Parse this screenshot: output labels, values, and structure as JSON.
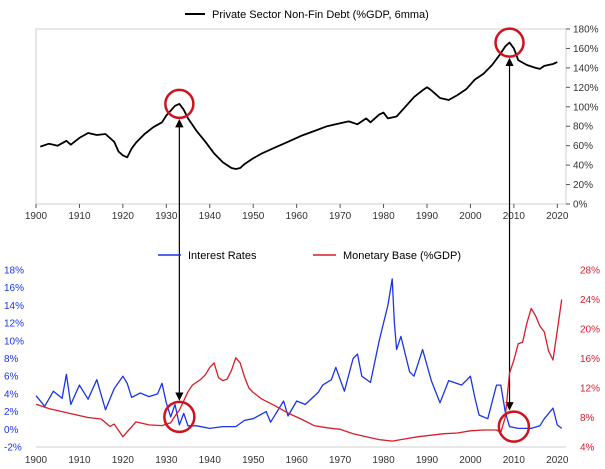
{
  "chart_data": [
    {
      "type": "line",
      "title": "",
      "xlabel": "",
      "ylabel": "",
      "xlim": [
        1900,
        2022
      ],
      "ylim": [
        0,
        180
      ],
      "grid": false,
      "legend": "top-center",
      "y_axis_side": "right",
      "x_ticks": [
        "1900",
        "1910",
        "1920",
        "1930",
        "1940",
        "1950",
        "1960",
        "1970",
        "1980",
        "1990",
        "2000",
        "2010",
        "2020"
      ],
      "y_ticks": [
        "0%",
        "20%",
        "40%",
        "60%",
        "80%",
        "100%",
        "120%",
        "140%",
        "160%",
        "180%"
      ],
      "highlight_circles": [
        {
          "x": 1933,
          "y": 103
        },
        {
          "x": 2009,
          "y": 166
        }
      ],
      "series": [
        {
          "name": "Private Sector Non-Fin Debt (%GDP, 6mma)",
          "color": "#000000",
          "points": [
            [
              1901,
              59
            ],
            [
              1903,
              62
            ],
            [
              1905,
              60
            ],
            [
              1907,
              65
            ],
            [
              1908,
              61
            ],
            [
              1910,
              68
            ],
            [
              1912,
              73
            ],
            [
              1914,
              71
            ],
            [
              1916,
              72
            ],
            [
              1918,
              64
            ],
            [
              1919,
              54
            ],
            [
              1920,
              50
            ],
            [
              1921,
              48
            ],
            [
              1922,
              57
            ],
            [
              1923,
              63
            ],
            [
              1925,
              72
            ],
            [
              1927,
              79
            ],
            [
              1929,
              84
            ],
            [
              1930,
              91
            ],
            [
              1931,
              96
            ],
            [
              1932,
              101
            ],
            [
              1933,
              103
            ],
            [
              1934,
              97
            ],
            [
              1935,
              88
            ],
            [
              1937,
              75
            ],
            [
              1939,
              64
            ],
            [
              1941,
              52
            ],
            [
              1943,
              43
            ],
            [
              1945,
              37
            ],
            [
              1946,
              36
            ],
            [
              1947,
              37
            ],
            [
              1948,
              41
            ],
            [
              1950,
              47
            ],
            [
              1952,
              52
            ],
            [
              1955,
              58
            ],
            [
              1958,
              64
            ],
            [
              1961,
              70
            ],
            [
              1964,
              75
            ],
            [
              1967,
              80
            ],
            [
              1970,
              83
            ],
            [
              1972,
              85
            ],
            [
              1974,
              82
            ],
            [
              1976,
              88
            ],
            [
              1977,
              84
            ],
            [
              1979,
              92
            ],
            [
              1980,
              94
            ],
            [
              1981,
              88
            ],
            [
              1983,
              90
            ],
            [
              1985,
              100
            ],
            [
              1987,
              110
            ],
            [
              1989,
              117
            ],
            [
              1990,
              120
            ],
            [
              1991,
              117
            ],
            [
              1993,
              109
            ],
            [
              1995,
              107
            ],
            [
              1997,
              112
            ],
            [
              1999,
              118
            ],
            [
              2001,
              128
            ],
            [
              2003,
              134
            ],
            [
              2005,
              143
            ],
            [
              2007,
              155
            ],
            [
              2008,
              162
            ],
            [
              2009,
              166
            ],
            [
              2010,
              160
            ],
            [
              2011,
              148
            ],
            [
              2013,
              143
            ],
            [
              2015,
              140
            ],
            [
              2016,
              139
            ],
            [
              2017,
              142
            ],
            [
              2019,
              144
            ],
            [
              2020,
              146
            ]
          ]
        }
      ]
    },
    {
      "type": "line",
      "title": "",
      "xlabel": "",
      "ylabel": "",
      "xlim": [
        1900,
        2022
      ],
      "ylim_left": [
        -2,
        18
      ],
      "ylim_right": [
        4,
        28
      ],
      "grid": false,
      "legend": "top-center",
      "x_ticks": [
        "1900",
        "1910",
        "1920",
        "1930",
        "1940",
        "1950",
        "1960",
        "1970",
        "1980",
        "1990",
        "2000",
        "2010",
        "2020"
      ],
      "y_ticks_left": [
        "-2%",
        "0%",
        "2%",
        "4%",
        "6%",
        "8%",
        "10%",
        "12%",
        "14%",
        "16%",
        "18%"
      ],
      "y_ticks_right": [
        "4%",
        "8%",
        "12%",
        "16%",
        "20%",
        "24%",
        "28%"
      ],
      "highlight_circles": [
        {
          "x": 1933,
          "y": 1.4,
          "axis": "left"
        },
        {
          "x": 2010,
          "y": 0.3,
          "axis": "left"
        }
      ],
      "series": [
        {
          "name": "Interest Rates",
          "axis": "left",
          "color": "#1a35e8",
          "points": [
            [
              1900,
              3.8
            ],
            [
              1902,
              2.6
            ],
            [
              1904,
              4.3
            ],
            [
              1906,
              3.5
            ],
            [
              1907,
              6.2
            ],
            [
              1908,
              2.8
            ],
            [
              1910,
              5.0
            ],
            [
              1912,
              3.4
            ],
            [
              1914,
              5.6
            ],
            [
              1916,
              2.2
            ],
            [
              1918,
              4.6
            ],
            [
              1920,
              6.0
            ],
            [
              1921,
              5.2
            ],
            [
              1922,
              3.6
            ],
            [
              1924,
              4.1
            ],
            [
              1926,
              3.7
            ],
            [
              1928,
              4.0
            ],
            [
              1929,
              5.2
            ],
            [
              1930,
              3.0
            ],
            [
              1931,
              1.4
            ],
            [
              1932,
              2.8
            ],
            [
              1933,
              0.5
            ],
            [
              1934,
              1.8
            ],
            [
              1935,
              0.4
            ],
            [
              1937,
              0.4
            ],
            [
              1940,
              0.1
            ],
            [
              1943,
              0.3
            ],
            [
              1946,
              0.3
            ],
            [
              1948,
              1.0
            ],
            [
              1950,
              1.2
            ],
            [
              1953,
              2.0
            ],
            [
              1954,
              0.8
            ],
            [
              1957,
              3.2
            ],
            [
              1958,
              1.5
            ],
            [
              1960,
              3.2
            ],
            [
              1962,
              2.8
            ],
            [
              1965,
              4.2
            ],
            [
              1966,
              5.0
            ],
            [
              1968,
              5.6
            ],
            [
              1969,
              7.0
            ],
            [
              1971,
              4.3
            ],
            [
              1973,
              8.0
            ],
            [
              1974,
              8.5
            ],
            [
              1975,
              6.0
            ],
            [
              1977,
              5.3
            ],
            [
              1979,
              10.0
            ],
            [
              1980,
              12.0
            ],
            [
              1981,
              14.0
            ],
            [
              1982,
              17.0
            ],
            [
              1982.5,
              12.0
            ],
            [
              1983,
              9.0
            ],
            [
              1984,
              10.5
            ],
            [
              1986,
              6.5
            ],
            [
              1987,
              6.0
            ],
            [
              1989,
              9.0
            ],
            [
              1991,
              5.5
            ],
            [
              1993,
              3.0
            ],
            [
              1995,
              5.5
            ],
            [
              1998,
              5.0
            ],
            [
              2000,
              6.0
            ],
            [
              2001,
              3.6
            ],
            [
              2002,
              1.6
            ],
            [
              2004,
              1.2
            ],
            [
              2006,
              5.0
            ],
            [
              2007,
              5.0
            ],
            [
              2008,
              2.0
            ],
            [
              2009,
              0.3
            ],
            [
              2011,
              0.1
            ],
            [
              2014,
              0.1
            ],
            [
              2016,
              0.4
            ],
            [
              2017,
              1.2
            ],
            [
              2019,
              2.4
            ],
            [
              2020,
              0.5
            ],
            [
              2021,
              0.1
            ]
          ]
        },
        {
          "name": "Monetary Base (%GDP)",
          "axis": "right",
          "color": "#d71d2a",
          "points": [
            [
              1900,
              9.8
            ],
            [
              1903,
              9.2
            ],
            [
              1906,
              8.8
            ],
            [
              1909,
              8.4
            ],
            [
              1912,
              8.0
            ],
            [
              1915,
              7.8
            ],
            [
              1917,
              6.8
            ],
            [
              1918,
              7.1
            ],
            [
              1920,
              5.4
            ],
            [
              1923,
              7.4
            ],
            [
              1926,
              7.0
            ],
            [
              1929,
              6.9
            ],
            [
              1931,
              7.3
            ],
            [
              1932,
              8.2
            ],
            [
              1933,
              9.0
            ],
            [
              1935,
              11.5
            ],
            [
              1936,
              12.4
            ],
            [
              1937,
              12.8
            ],
            [
              1938,
              13.2
            ],
            [
              1939,
              13.8
            ],
            [
              1940,
              14.8
            ],
            [
              1941,
              15.4
            ],
            [
              1942,
              13.4
            ],
            [
              1943,
              13.0
            ],
            [
              1944,
              13.2
            ],
            [
              1945,
              14.4
            ],
            [
              1946,
              16.1
            ],
            [
              1947,
              15.4
            ],
            [
              1948,
              13.5
            ],
            [
              1949,
              12.0
            ],
            [
              1950,
              11.4
            ],
            [
              1952,
              10.5
            ],
            [
              1955,
              9.6
            ],
            [
              1958,
              8.6
            ],
            [
              1961,
              7.8
            ],
            [
              1964,
              6.9
            ],
            [
              1967,
              6.6
            ],
            [
              1970,
              6.4
            ],
            [
              1973,
              5.8
            ],
            [
              1976,
              5.4
            ],
            [
              1979,
              5.0
            ],
            [
              1982,
              4.8
            ],
            [
              1985,
              5.1
            ],
            [
              1988,
              5.4
            ],
            [
              1991,
              5.6
            ],
            [
              1994,
              5.8
            ],
            [
              1997,
              5.9
            ],
            [
              2000,
              6.2
            ],
            [
              2003,
              6.3
            ],
            [
              2006,
              6.3
            ],
            [
              2007,
              6.0
            ],
            [
              2008,
              8.0
            ],
            [
              2009,
              14.0
            ],
            [
              2010,
              15.8
            ],
            [
              2011,
              18.0
            ],
            [
              2012,
              18.2
            ],
            [
              2013,
              20.8
            ],
            [
              2014,
              22.8
            ],
            [
              2015,
              21.8
            ],
            [
              2016,
              20.4
            ],
            [
              2017,
              19.6
            ],
            [
              2018,
              17.0
            ],
            [
              2019,
              15.8
            ],
            [
              2020,
              19.8
            ],
            [
              2021,
              24.0
            ]
          ]
        }
      ]
    }
  ]
}
